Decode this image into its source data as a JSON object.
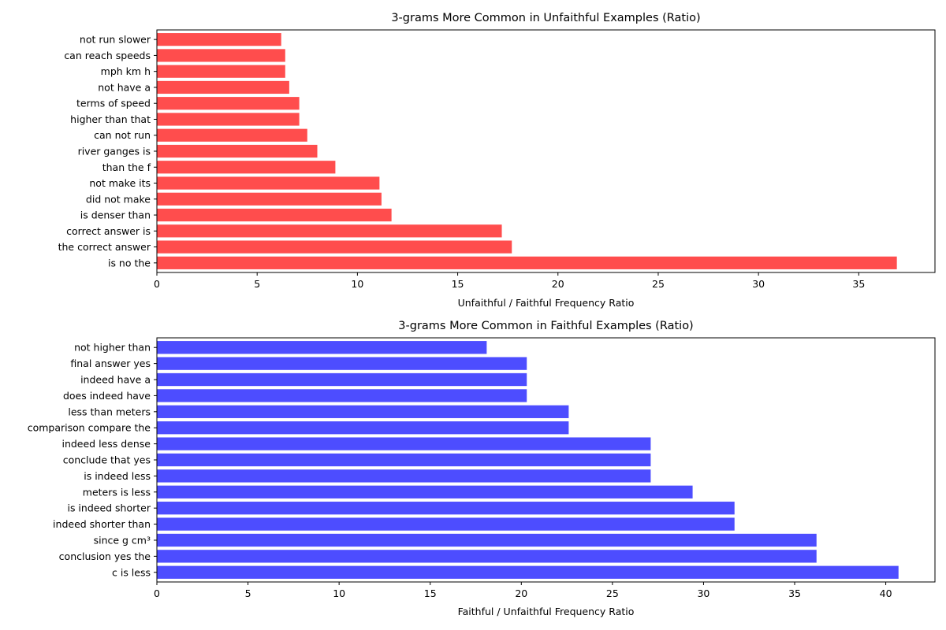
{
  "chart_data": [
    {
      "type": "bar",
      "orientation": "horizontal",
      "title": "3-grams More Common in Unfaithful Examples (Ratio)",
      "xlabel": "Unfaithful / Faithful Frequency Ratio",
      "ylabel": "",
      "xlim": [
        0,
        38.8
      ],
      "xticks": [
        0,
        5,
        10,
        15,
        20,
        25,
        30,
        35
      ],
      "color": "#ff4d4d",
      "grid": false,
      "categories": [
        "is no the",
        "the correct answer",
        "correct answer is",
        "is denser than",
        "did not make",
        "not make its",
        "than the f",
        "river ganges is",
        "can not run",
        "higher than that",
        "terms of speed",
        "not have a",
        "mph km h",
        "can reach speeds",
        "not run slower"
      ],
      "values": [
        36.9,
        17.7,
        17.2,
        11.7,
        11.2,
        11.1,
        8.9,
        8.0,
        7.5,
        7.1,
        7.1,
        6.6,
        6.4,
        6.4,
        6.2
      ]
    },
    {
      "type": "bar",
      "orientation": "horizontal",
      "title": "3-grams More Common in Faithful Examples (Ratio)",
      "xlabel": "Faithful / Unfaithful Frequency Ratio",
      "ylabel": "",
      "xlim": [
        0,
        42.7
      ],
      "xticks": [
        0,
        5,
        10,
        15,
        20,
        25,
        30,
        35,
        40
      ],
      "color": "#4d4dff",
      "grid": false,
      "categories": [
        "c is less",
        "conclusion yes the",
        "since g cm³",
        "indeed shorter than",
        "is indeed shorter",
        "meters is less",
        "is indeed less",
        "conclude that yes",
        "indeed less dense",
        "comparison compare the",
        "less than meters",
        "does indeed have",
        "indeed have a",
        "final answer yes",
        "not higher than"
      ],
      "values": [
        40.7,
        36.2,
        36.2,
        31.7,
        31.7,
        29.4,
        27.1,
        27.1,
        27.1,
        22.6,
        22.6,
        20.3,
        20.3,
        20.3,
        18.1
      ]
    }
  ]
}
